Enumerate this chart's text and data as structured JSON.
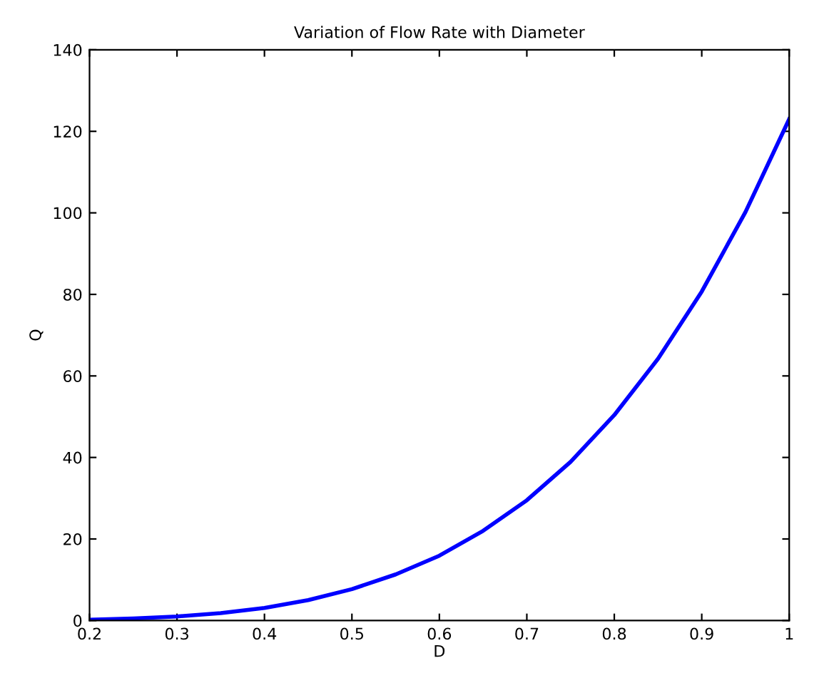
{
  "chart_data": {
    "type": "line",
    "title": "Variation of Flow Rate with Diameter",
    "xlabel": "D",
    "ylabel": "Q",
    "x": [
      0.2,
      0.25,
      0.3,
      0.35,
      0.4,
      0.45,
      0.5,
      0.55,
      0.6,
      0.65,
      0.7,
      0.75,
      0.8,
      0.85,
      0.9,
      0.95,
      1.0
    ],
    "series": [
      {
        "color": "#0000ff",
        "values": [
          0.2,
          0.5,
          1.0,
          1.8,
          3.1,
          5.0,
          7.7,
          11.3,
          15.9,
          22.0,
          29.5,
          38.9,
          50.4,
          64.2,
          80.7,
          100.2,
          123
        ]
      }
    ],
    "xlim": [
      0.2,
      1
    ],
    "ylim": [
      0,
      140
    ],
    "xticks": [
      0.2,
      0.3,
      0.4,
      0.5,
      0.6,
      0.7,
      0.8,
      0.9,
      1
    ],
    "yticks": [
      0,
      20,
      40,
      60,
      80,
      100,
      120,
      140
    ],
    "grid": false,
    "legend": false
  }
}
